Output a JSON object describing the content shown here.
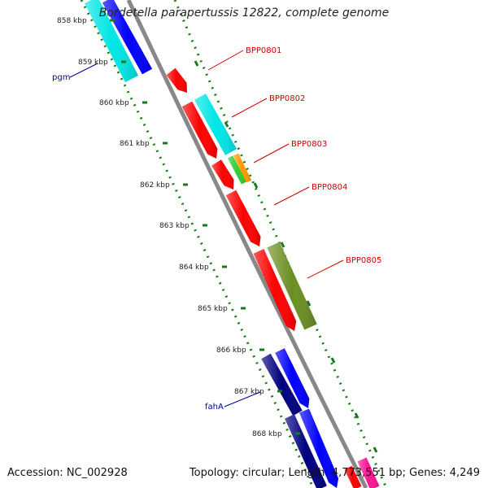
{
  "title": "Bordetella parapertussis 12822, complete genome",
  "footer": {
    "accession": "Accession: NC_002928",
    "summary": "Topology: circular; Length: 4,773,551 bp; Genes: 4,249"
  },
  "scale_labels": [
    "858 kbp",
    "859 kbp",
    "860 kbp",
    "861 kbp",
    "862 kbp",
    "863 kbp",
    "864 kbp",
    "865 kbp",
    "866 kbp",
    "867 kbp",
    "868 kbp"
  ],
  "gene_labels": [
    {
      "name": "BPP0801",
      "color": "#cc0000"
    },
    {
      "name": "BPP0802",
      "color": "#cc0000"
    },
    {
      "name": "BPP0803",
      "color": "#cc0000"
    },
    {
      "name": "BPP0804",
      "color": "#cc0000"
    },
    {
      "name": "BPP0805",
      "color": "#cc0000"
    },
    {
      "name": "pgm",
      "color": "#000099"
    },
    {
      "name": "fahA",
      "color": "#000099"
    }
  ],
  "colors": {
    "red": "#ff0000",
    "cyan": "#00e5e5",
    "blue": "#0000ff",
    "navy": "#000080",
    "olive": "#6b8e23",
    "green": "#32cd32",
    "orange": "#ff9900",
    "pink": "#ff1493",
    "backbone": "#888888",
    "ticks": "#1a7a1a"
  }
}
